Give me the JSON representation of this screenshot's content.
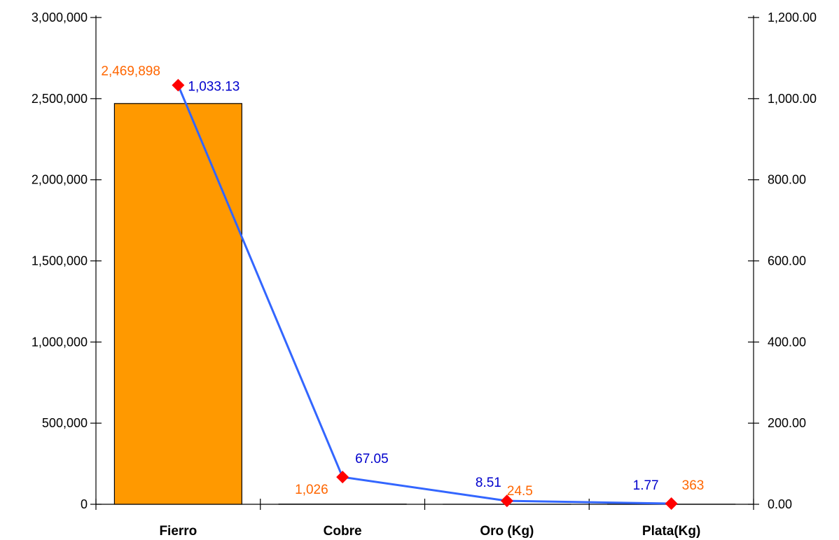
{
  "chart_data": {
    "type": "bar",
    "categories": [
      "Fierro",
      "Cobre",
      "Oro (Kg)",
      "Plata(Kg)"
    ],
    "series": [
      {
        "type": "bar",
        "axis": "left",
        "color": "#FF9900",
        "values": [
          2469898,
          1026,
          24.5,
          363
        ],
        "labels": [
          "2,469,898",
          "1,026",
          "24.5",
          "363"
        ]
      },
      {
        "type": "line",
        "axis": "right",
        "color": "#3366FF",
        "marker_color": "#FF0000",
        "values": [
          1033.13,
          67.05,
          8.51,
          1.77
        ],
        "labels": [
          "1,033.13",
          "67.05",
          "8.51",
          "1.77"
        ]
      }
    ],
    "y_left": {
      "range": [
        0,
        3000000
      ],
      "ticks": [
        0,
        500000,
        1000000,
        1500000,
        2000000,
        2500000,
        3000000
      ],
      "tick_labels": [
        "0",
        "500,000",
        "1,000,000",
        "1,500,000",
        "2,000,000",
        "2,500,000",
        "3,000,000"
      ]
    },
    "y_right": {
      "range": [
        0,
        1200
      ],
      "ticks": [
        0,
        200,
        400,
        600,
        800,
        1000,
        1200
      ],
      "tick_labels": [
        "0.00",
        "200.00",
        "400.00",
        "600.00",
        "800.00",
        "1,000.00",
        "1,200.00"
      ]
    },
    "grid": false,
    "legend": "none",
    "label_colors": {
      "bar": "#FF6600",
      "line": "#0000CC"
    }
  }
}
